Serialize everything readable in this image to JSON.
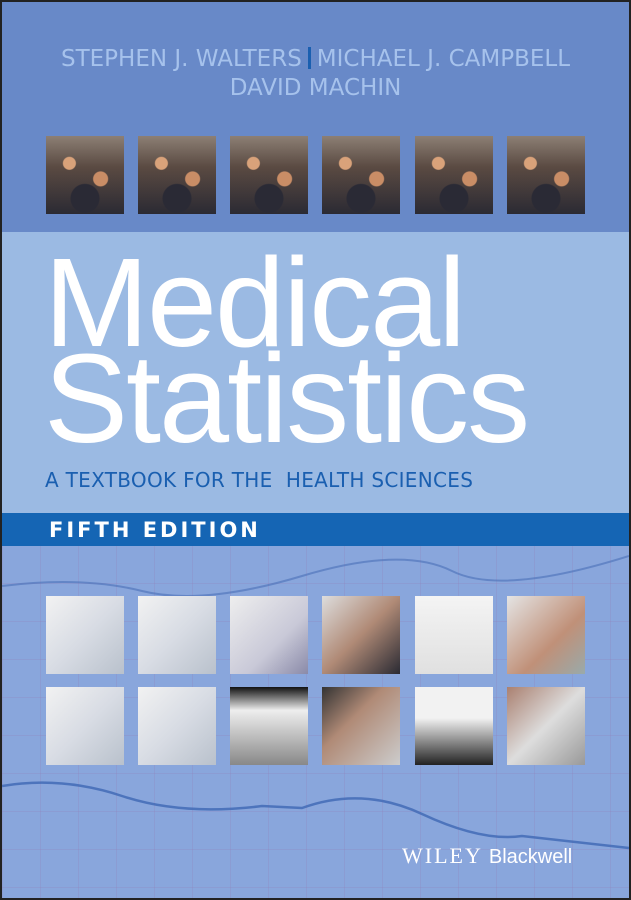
{
  "authors": {
    "first": "STEPHEN J. WALTERS",
    "second": "MICHAEL J. CAMPBELL",
    "third": "DAVID MACHIN"
  },
  "title": {
    "line1": "Medical",
    "line2": "Statistics"
  },
  "subtitle": "A TEXTBOOK FOR THE  HEALTH SCIENCES",
  "edition": "FIFTH EDITION",
  "publisher": {
    "wiley": "WILEY",
    "imprint": "Blackwell"
  },
  "colors": {
    "top_band": "#6889c8",
    "title_band": "#9bbae3",
    "edition_band": "#1565b4",
    "subtitle_text": "#1a5fb0",
    "lower_background": "#89a6dc"
  }
}
